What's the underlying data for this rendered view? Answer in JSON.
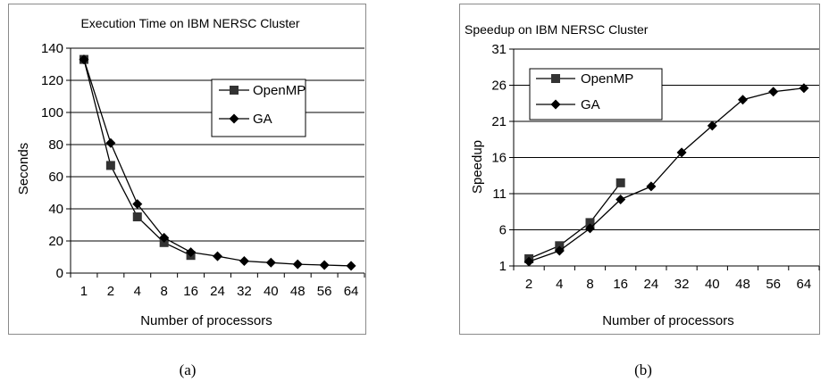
{
  "chart_data": [
    {
      "type": "line",
      "title": "Execution Time on IBM NERSC Cluster",
      "xlabel": "Number of processors",
      "ylabel": "Seconds",
      "categories": [
        "1",
        "2",
        "4",
        "8",
        "16",
        "24",
        "32",
        "40",
        "48",
        "56",
        "64"
      ],
      "ylim": [
        0,
        140
      ],
      "yticks": [
        "0",
        "20",
        "40",
        "60",
        "80",
        "100",
        "120",
        "140"
      ],
      "grid": true,
      "legend_position": "upper-right",
      "series": [
        {
          "name": "OpenMP",
          "marker": "square",
          "values": [
            133,
            67,
            35,
            19,
            11,
            null,
            null,
            null,
            null,
            null,
            null
          ]
        },
        {
          "name": "GA",
          "marker": "diamond",
          "values": [
            133,
            81,
            43,
            22,
            13,
            10.5,
            7.5,
            6.5,
            5.5,
            5,
            4.5
          ]
        }
      ],
      "caption": "(a)"
    },
    {
      "type": "line",
      "title": "Speedup on IBM NERSC Cluster",
      "xlabel": "Number of processors",
      "ylabel": "Speedup",
      "categories": [
        "2",
        "4",
        "8",
        "16",
        "24",
        "32",
        "40",
        "48",
        "56",
        "64"
      ],
      "ylim": [
        1,
        31
      ],
      "yticks": [
        "1",
        "6",
        "11",
        "16",
        "21",
        "26",
        "31"
      ],
      "grid": true,
      "legend_position": "upper-left",
      "series": [
        {
          "name": "OpenMP",
          "marker": "square",
          "values": [
            2,
            3.8,
            7,
            12.5,
            null,
            null,
            null,
            null,
            null,
            null
          ]
        },
        {
          "name": "GA",
          "marker": "diamond",
          "values": [
            1.6,
            3.1,
            6.2,
            10.2,
            12,
            16.7,
            20.4,
            24,
            25.1,
            25.6
          ]
        }
      ],
      "caption": "(b)"
    }
  ],
  "colors": {
    "line": "#000000",
    "marker": "#333333",
    "grid": "#000000",
    "border": "#8a8a8a"
  }
}
